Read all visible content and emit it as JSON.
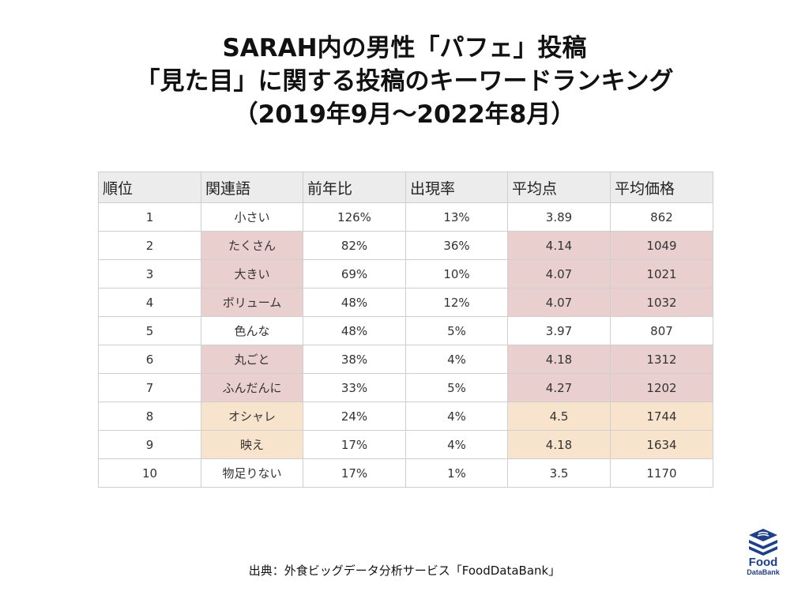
{
  "title": {
    "line1": "SARAH内の男性「パフェ」投稿",
    "line2": "「見た目」に関する投稿のキーワードランキング",
    "line3": "（2019年9月～2022年8月）"
  },
  "chart_data": {
    "type": "table",
    "columns": [
      "順位",
      "関連語",
      "前年比",
      "出現率",
      "平均点",
      "平均価格"
    ],
    "rows": [
      {
        "rank": "1",
        "word": "小さい",
        "yoy": "126%",
        "rate": "13%",
        "score": "3.89",
        "price": "862",
        "highlight": "none"
      },
      {
        "rank": "2",
        "word": "たくさん",
        "yoy": "82%",
        "rate": "36%",
        "score": "4.14",
        "price": "1049",
        "highlight": "pink"
      },
      {
        "rank": "3",
        "word": "大きい",
        "yoy": "69%",
        "rate": "10%",
        "score": "4.07",
        "price": "1021",
        "highlight": "pink"
      },
      {
        "rank": "4",
        "word": "ボリューム",
        "yoy": "48%",
        "rate": "12%",
        "score": "4.07",
        "price": "1032",
        "highlight": "pink"
      },
      {
        "rank": "5",
        "word": "色んな",
        "yoy": "48%",
        "rate": "5%",
        "score": "3.97",
        "price": "807",
        "highlight": "none"
      },
      {
        "rank": "6",
        "word": "丸ごと",
        "yoy": "38%",
        "rate": "4%",
        "score": "4.18",
        "price": "1312",
        "highlight": "pink"
      },
      {
        "rank": "7",
        "word": "ふんだんに",
        "yoy": "33%",
        "rate": "5%",
        "score": "4.27",
        "price": "1202",
        "highlight": "pink"
      },
      {
        "rank": "8",
        "word": "オシャレ",
        "yoy": "24%",
        "rate": "4%",
        "score": "4.5",
        "price": "1744",
        "highlight": "peach"
      },
      {
        "rank": "9",
        "word": "映え",
        "yoy": "17%",
        "rate": "4%",
        "score": "4.18",
        "price": "1634",
        "highlight": "peach"
      },
      {
        "rank": "10",
        "word": "物足りない",
        "yoy": "17%",
        "rate": "1%",
        "score": "3.5",
        "price": "1170",
        "highlight": "none"
      }
    ],
    "highlight_colors": {
      "pink": "#eacfcf",
      "peach": "#f8e3cd"
    }
  },
  "source": "出典：外食ビッグデータ分析サービス「FoodDataBank」",
  "logo": {
    "line1": "Food",
    "line2": "DataBank",
    "color": "#1d3f8f"
  }
}
